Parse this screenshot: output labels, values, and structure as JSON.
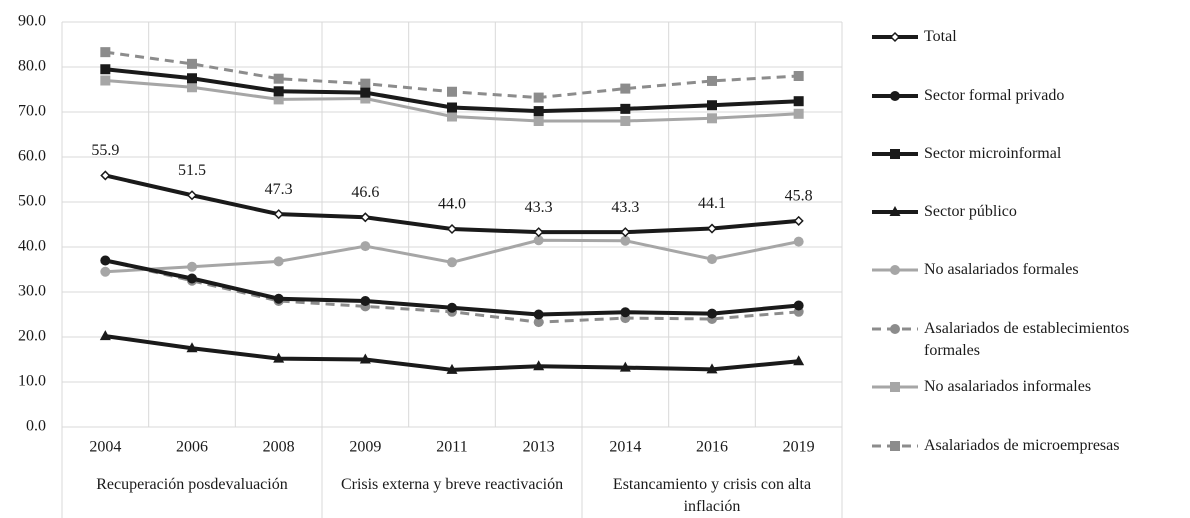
{
  "chart_data": {
    "type": "line",
    "categories": [
      "2004",
      "2006",
      "2008",
      "2009",
      "2011",
      "2013",
      "2014",
      "2016",
      "2019"
    ],
    "groups": [
      {
        "label": "Recuperación posdevaluación",
        "span": 3
      },
      {
        "label": "Crisis externa y breve reactivación",
        "span": 3
      },
      {
        "label": "Estancamiento y crisis con alta inflación",
        "span": 3
      }
    ],
    "ylim": [
      0,
      90
    ],
    "yticks": [
      {
        "value": 0,
        "label": "0.0"
      },
      {
        "value": 10,
        "label": "10.0"
      },
      {
        "value": 20,
        "label": "20.0"
      },
      {
        "value": 30,
        "label": "30.0"
      },
      {
        "value": 40,
        "label": "40.0"
      },
      {
        "value": 50,
        "label": "50.0"
      },
      {
        "value": 60,
        "label": "60.0"
      },
      {
        "value": 70,
        "label": "70.0"
      },
      {
        "value": 80,
        "label": "80.0"
      },
      {
        "value": 90,
        "label": "90.0"
      }
    ],
    "grid": true,
    "legend": "right",
    "series": [
      {
        "name": "Total",
        "color": "#1a1a1a",
        "marker": "diamond",
        "line_style": "solid",
        "values": [
          55.9,
          51.5,
          47.3,
          46.6,
          44.0,
          43.3,
          43.3,
          44.1,
          45.8
        ],
        "value_labels": [
          "55.9",
          "51.5",
          "47.3",
          "46.6",
          "44.0",
          "43.3",
          "43.3",
          "44.1",
          "45.8"
        ]
      },
      {
        "name": "Sector formal privado",
        "color": "#1a1a1a",
        "marker": "circle",
        "line_style": "solid",
        "values": [
          37.0,
          33.0,
          28.5,
          28.0,
          26.5,
          25.0,
          25.5,
          25.2,
          27.0
        ]
      },
      {
        "name": "Sector microinformal",
        "color": "#1a1a1a",
        "marker": "square",
        "line_style": "solid",
        "values": [
          79.5,
          77.5,
          74.6,
          74.3,
          71.0,
          70.2,
          70.7,
          71.5,
          72.4
        ]
      },
      {
        "name": "Sector público",
        "color": "#1a1a1a",
        "marker": "triangle",
        "line_style": "solid",
        "values": [
          20.2,
          17.5,
          15.2,
          15.0,
          12.7,
          13.5,
          13.2,
          12.8,
          14.6
        ]
      },
      {
        "name": "No asalariados formales",
        "color": "#a6a6a6",
        "marker": "circle",
        "line_style": "solid",
        "values": [
          34.5,
          35.6,
          36.8,
          40.2,
          36.6,
          41.5,
          41.4,
          37.3,
          41.2
        ]
      },
      {
        "name": "Asalariados de establecimientos formales",
        "color": "#8c8c8c",
        "marker": "circle",
        "line_style": "dashed",
        "values": [
          37.0,
          32.5,
          28.0,
          26.8,
          25.6,
          23.3,
          24.2,
          24.0,
          25.6
        ]
      },
      {
        "name": "No asalariados informales",
        "color": "#a6a6a6",
        "marker": "square",
        "line_style": "solid",
        "values": [
          77.0,
          75.5,
          72.8,
          73.0,
          69.0,
          68.0,
          68.0,
          68.6,
          69.6
        ]
      },
      {
        "name": "Asalariados de microempresas",
        "color": "#8c8c8c",
        "marker": "square",
        "line_style": "dashed",
        "values": [
          83.3,
          80.7,
          77.4,
          76.3,
          74.5,
          73.2,
          75.2,
          76.9,
          78.0
        ]
      }
    ]
  }
}
